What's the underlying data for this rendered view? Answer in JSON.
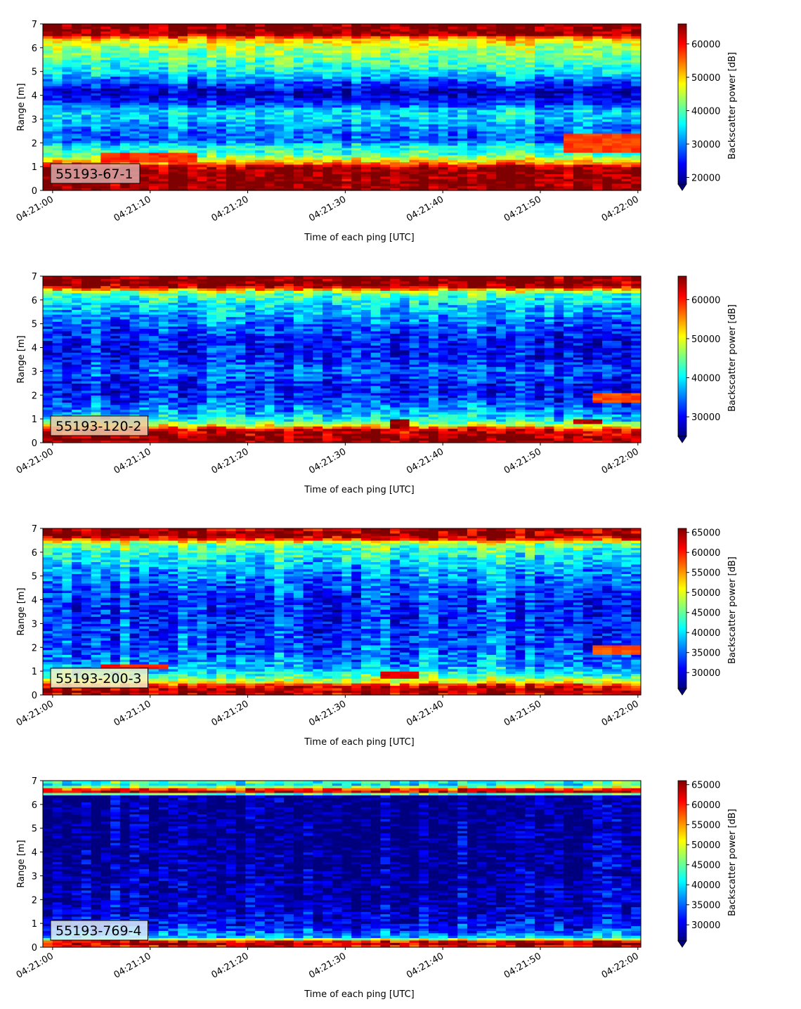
{
  "figure": {
    "colormap": "jet",
    "colormap_stops": [
      "#00007f",
      "#0000ff",
      "#007fff",
      "#00ffff",
      "#7fff7f",
      "#ffff00",
      "#ff7f00",
      "#ff0000",
      "#7f0000"
    ]
  },
  "chart_data": [
    {
      "type": "heatmap",
      "panel_label": "55193-67-1",
      "label_box_color": "#d9a8a8",
      "xlabel": "Time of each ping [UTC]",
      "ylabel": "Range [m]",
      "colorbar_label": "Backscatter power [dB]",
      "x_ticks": [
        "04:21:00",
        "04:21:10",
        "04:21:20",
        "04:21:30",
        "04:21:40",
        "04:21:50",
        "04:22:00"
      ],
      "x_range_seconds": [
        -1,
        60.3
      ],
      "ylim": [
        0,
        7
      ],
      "y_ticks": [
        0,
        1,
        2,
        3,
        4,
        5,
        6,
        7
      ],
      "cbar_range": [
        18000,
        66000
      ],
      "cbar_ticks": [
        20000,
        30000,
        40000,
        50000,
        60000
      ],
      "profile": [
        [
          0.0,
          66000
        ],
        [
          0.2,
          65500
        ],
        [
          0.9,
          65000
        ],
        [
          1.05,
          60000
        ],
        [
          1.2,
          52000
        ],
        [
          1.5,
          40000
        ],
        [
          1.9,
          36000
        ],
        [
          2.1,
          28000
        ],
        [
          2.6,
          30000
        ],
        [
          3.0,
          34000
        ],
        [
          3.3,
          35000
        ],
        [
          3.7,
          26000
        ],
        [
          4.1,
          21000
        ],
        [
          4.5,
          27000
        ],
        [
          5.0,
          36000
        ],
        [
          5.5,
          40000
        ],
        [
          6.1,
          45000
        ],
        [
          6.4,
          52000
        ],
        [
          6.55,
          64000
        ],
        [
          6.7,
          66000
        ],
        [
          7.0,
          66000
        ]
      ],
      "features": [
        {
          "t0": 5,
          "t1": 15,
          "r0": 1.2,
          "r1": 1.55,
          "value": 58000
        },
        {
          "t0": 52,
          "t1": 60.3,
          "r0": 1.6,
          "r1": 2.4,
          "value": 57000
        }
      ]
    },
    {
      "type": "heatmap",
      "panel_label": "55193-120-2",
      "label_box_color": "#ecc9a8",
      "xlabel": "Time of each ping [UTC]",
      "ylabel": "Range [m]",
      "colorbar_label": "Backscatter power [dB]",
      "x_ticks": [
        "04:21:00",
        "04:21:10",
        "04:21:20",
        "04:21:30",
        "04:21:40",
        "04:21:50",
        "04:22:00"
      ],
      "x_range_seconds": [
        -1,
        60.3
      ],
      "ylim": [
        0,
        7
      ],
      "y_ticks": [
        0,
        1,
        2,
        3,
        4,
        5,
        6,
        7
      ],
      "cbar_range": [
        25000,
        66000
      ],
      "cbar_ticks": [
        30000,
        40000,
        50000,
        60000
      ],
      "profile": [
        [
          0.0,
          64000
        ],
        [
          0.15,
          66000
        ],
        [
          0.55,
          62000
        ],
        [
          0.7,
          52000
        ],
        [
          0.9,
          42000
        ],
        [
          1.2,
          38000
        ],
        [
          1.6,
          34000
        ],
        [
          2.0,
          31000
        ],
        [
          2.5,
          31000
        ],
        [
          3.0,
          34000
        ],
        [
          3.5,
          31000
        ],
        [
          4.0,
          30000
        ],
        [
          4.6,
          32000
        ],
        [
          5.2,
          35000
        ],
        [
          5.8,
          39000
        ],
        [
          6.3,
          44000
        ],
        [
          6.45,
          55000
        ],
        [
          6.6,
          66000
        ],
        [
          7.0,
          66000
        ]
      ],
      "features": [
        {
          "t0": 35,
          "t1": 37,
          "r0": 0.65,
          "r1": 1.0,
          "value": 65000
        },
        {
          "t0": 53,
          "t1": 56,
          "r0": 0.85,
          "r1": 1.0,
          "value": 64000
        },
        {
          "t0": 55,
          "t1": 60.3,
          "r0": 1.7,
          "r1": 2.1,
          "value": 58000
        }
      ]
    },
    {
      "type": "heatmap",
      "panel_label": "55193-200-3",
      "label_box_color": "#f4f0c8",
      "xlabel": "Time of each ping [UTC]",
      "ylabel": "Range [m]",
      "colorbar_label": "Backscatter power [dB]",
      "x_ticks": [
        "04:21:00",
        "04:21:10",
        "04:21:20",
        "04:21:30",
        "04:21:40",
        "04:21:50",
        "04:22:00"
      ],
      "x_range_seconds": [
        -1,
        60.3
      ],
      "ylim": [
        0,
        7
      ],
      "y_ticks": [
        0,
        1,
        2,
        3,
        4,
        5,
        6,
        7
      ],
      "cbar_range": [
        26000,
        66000
      ],
      "cbar_ticks": [
        30000,
        35000,
        40000,
        45000,
        50000,
        55000,
        60000,
        65000
      ],
      "profile": [
        [
          0.0,
          60000
        ],
        [
          0.12,
          66000
        ],
        [
          0.4,
          62000
        ],
        [
          0.55,
          52000
        ],
        [
          0.8,
          44000
        ],
        [
          1.2,
          38000
        ],
        [
          1.8,
          35000
        ],
        [
          2.5,
          34000
        ],
        [
          3.2,
          33000
        ],
        [
          4.0,
          33000
        ],
        [
          4.8,
          36000
        ],
        [
          5.4,
          39000
        ],
        [
          6.0,
          43000
        ],
        [
          6.4,
          47000
        ],
        [
          6.55,
          60000
        ],
        [
          6.7,
          66000
        ],
        [
          7.0,
          64000
        ]
      ],
      "features": [
        {
          "t0": 5,
          "t1": 12,
          "r0": 1.1,
          "r1": 1.3,
          "value": 60000
        },
        {
          "t0": 34,
          "t1": 38,
          "r0": 0.75,
          "r1": 1.0,
          "value": 62000
        },
        {
          "t0": 55,
          "t1": 60.3,
          "r0": 1.7,
          "r1": 2.1,
          "value": 58000
        }
      ]
    },
    {
      "type": "heatmap",
      "panel_label": "55193-769-4",
      "label_box_color": "#dff0f8",
      "xlabel": "Time of each ping [UTC]",
      "ylabel": "Range [m]",
      "colorbar_label": "Backscatter power [dB]",
      "x_ticks": [
        "04:21:00",
        "04:21:10",
        "04:21:20",
        "04:21:30",
        "04:21:40",
        "04:21:50",
        "04:22:00"
      ],
      "x_range_seconds": [
        -1,
        60.3
      ],
      "ylim": [
        0,
        7
      ],
      "y_ticks": [
        0,
        1,
        2,
        3,
        4,
        5,
        6,
        7
      ],
      "cbar_range": [
        26000,
        66000
      ],
      "cbar_ticks": [
        30000,
        35000,
        40000,
        45000,
        50000,
        55000,
        60000,
        65000
      ],
      "profile": [
        [
          0.0,
          58000
        ],
        [
          0.12,
          66000
        ],
        [
          0.28,
          60000
        ],
        [
          0.4,
          40000
        ],
        [
          0.7,
          34000
        ],
        [
          1.0,
          31000
        ],
        [
          1.6,
          29000
        ],
        [
          2.5,
          28000
        ],
        [
          4.0,
          27000
        ],
        [
          5.5,
          26500
        ],
        [
          6.4,
          27000
        ],
        [
          6.5,
          62000
        ],
        [
          6.6,
          66000
        ],
        [
          6.72,
          50000
        ],
        [
          6.85,
          42000
        ],
        [
          7.0,
          44000
        ]
      ],
      "features": []
    }
  ]
}
